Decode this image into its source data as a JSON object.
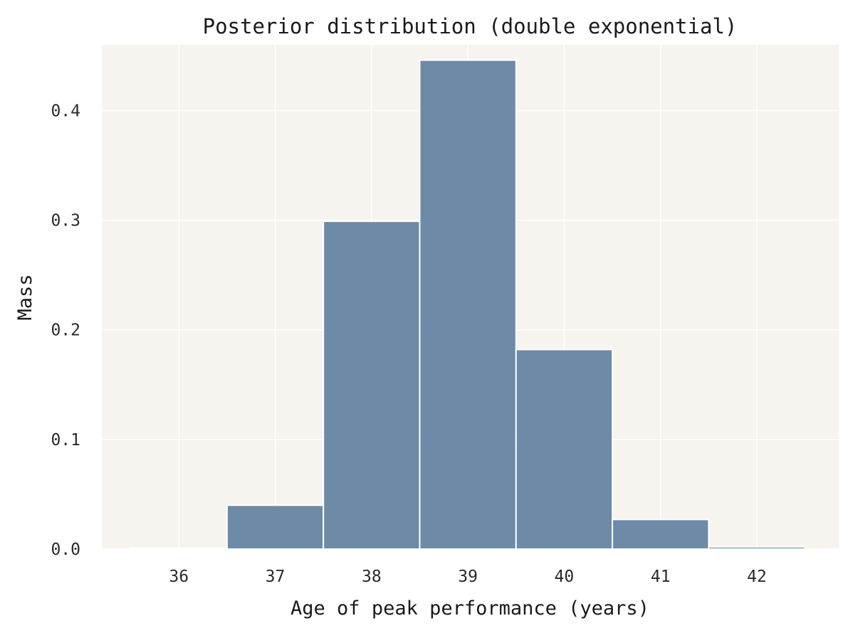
{
  "chart_data": {
    "type": "bar",
    "title": "Posterior distribution (double exponential)",
    "xlabel": "Age of peak performance (years)",
    "ylabel": "Mass",
    "categories": [
      36,
      37,
      38,
      39,
      40,
      41,
      42
    ],
    "values": [
      0.001,
      0.04,
      0.299,
      0.446,
      0.182,
      0.027,
      0.002
    ],
    "bin_width": 1,
    "xlim": [
      35.2,
      42.85
    ],
    "ylim": [
      0,
      0.46
    ],
    "x_ticks": [
      "36",
      "37",
      "38",
      "39",
      "40",
      "41",
      "42"
    ],
    "y_ticks": [
      "0.0",
      "0.1",
      "0.2",
      "0.3",
      "0.4"
    ],
    "y_tick_values": [
      0,
      0.1,
      0.2,
      0.3,
      0.4
    ],
    "grid": true,
    "legend": "none",
    "colors": {
      "plot_background": "#f7f3ee",
      "grid": "#ffffff",
      "bar_fill": "#5d7e9f",
      "bar_edge": "#ffffff"
    }
  }
}
